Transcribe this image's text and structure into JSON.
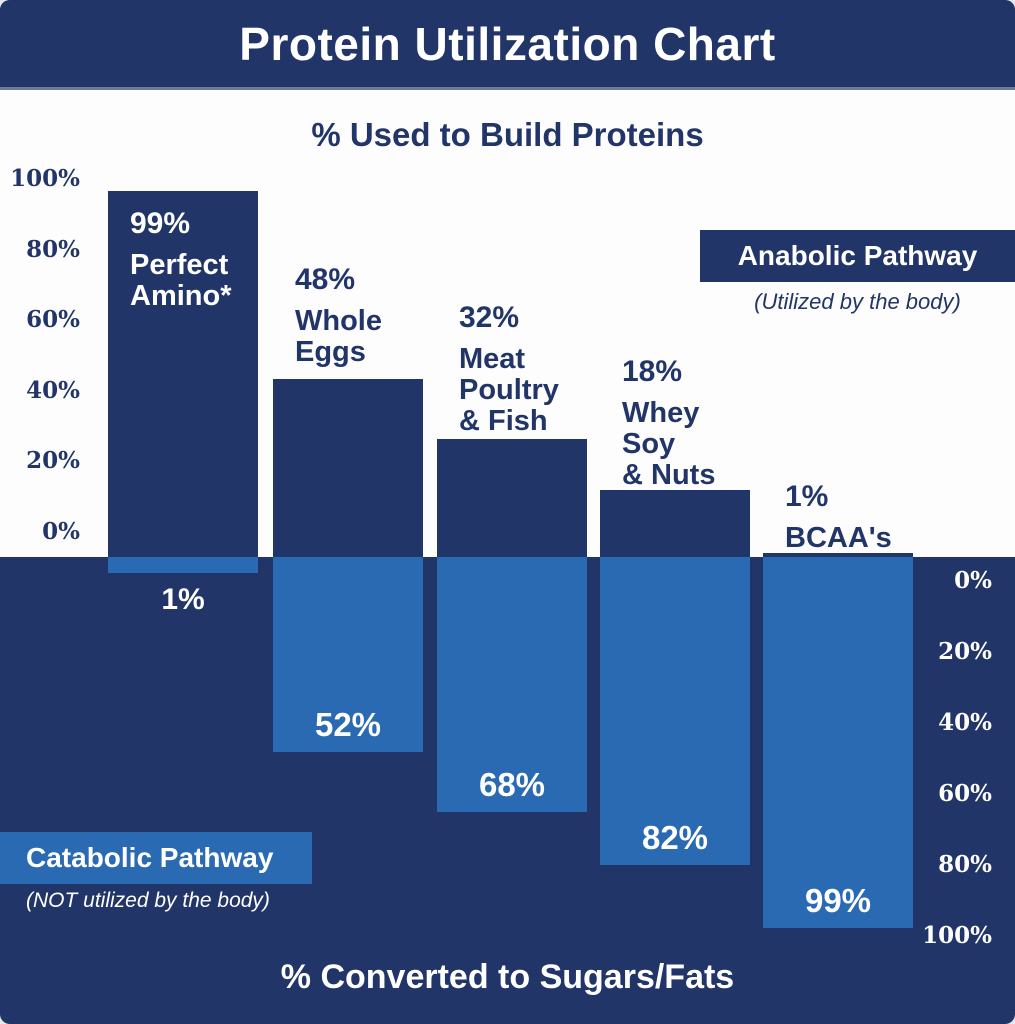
{
  "title": "Protein Utilization Chart",
  "top_section": {
    "heading": "% Used to Build Proteins",
    "axis_labels": [
      "100%",
      "80%",
      "60%",
      "40%",
      "20%",
      "0%"
    ]
  },
  "bottom_section": {
    "heading": "% Converted to Sugars/Fats",
    "axis_labels": [
      "0%",
      "20%",
      "40%",
      "60%",
      "80%",
      "100%"
    ]
  },
  "legend": {
    "anabolic": {
      "label": "Anabolic Pathway",
      "sublabel": "(Utilized by the body)"
    },
    "catabolic": {
      "label": "Catabolic Pathway",
      "sublabel": "(NOT utilized by the body)"
    }
  },
  "colors": {
    "navy": "#223568",
    "light_blue": "#2a6ab3",
    "white": "#ffffff"
  },
  "chart_data": {
    "type": "bar",
    "categories": [
      "Perfect Amino*",
      "Whole Eggs",
      "Meat Poultry & Fish",
      "Whey Soy & Nuts",
      "BCAA's"
    ],
    "category_label_lines": [
      [
        "Perfect",
        "Amino*"
      ],
      [
        "Whole",
        "Eggs"
      ],
      [
        "Meat",
        "Poultry",
        "& Fish"
      ],
      [
        "Whey",
        "Soy",
        "& Nuts"
      ],
      [
        "BCAA's"
      ]
    ],
    "series": [
      {
        "name": "Anabolic Pathway (% Used to Build Proteins)",
        "direction": "up",
        "color": "#223568",
        "values": [
          99,
          48,
          32,
          18,
          1
        ]
      },
      {
        "name": "Catabolic Pathway (% Converted to Sugars/Fats)",
        "direction": "down",
        "color": "#2a6ab3",
        "values": [
          1,
          52,
          68,
          82,
          99
        ]
      }
    ],
    "value_suffix": "%",
    "ylim_top": [
      0,
      100
    ],
    "ylim_bottom": [
      0,
      100
    ],
    "grid": false,
    "legend_position": "anabolic: top-right of upper panel; catabolic: bottom-left of lower panel"
  }
}
